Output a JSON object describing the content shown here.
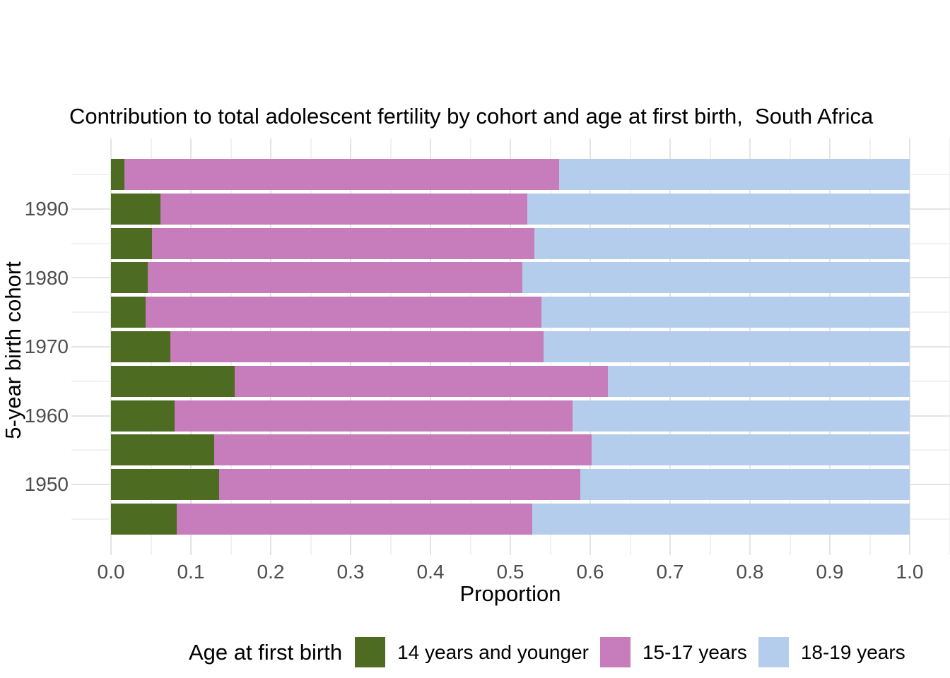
{
  "title": "Contribution to total adolescent fertility by cohort and age at first birth,  South Africa",
  "y_axis": {
    "label": "5-year birth cohort",
    "ticks": [
      "1990",
      "1980",
      "1970",
      "1960",
      "1950"
    ]
  },
  "x_axis": {
    "label": "Proportion",
    "ticks": [
      "0.0",
      "0.1",
      "0.2",
      "0.3",
      "0.4",
      "0.5",
      "0.6",
      "0.7",
      "0.8",
      "0.9",
      "1.0"
    ]
  },
  "legend": {
    "title": "Age at first birth",
    "items": [
      {
        "label": "14 years and younger",
        "color": "#4d6b21"
      },
      {
        "label": "15-17 years",
        "color": "#c77cbb"
      },
      {
        "label": "18-19 years",
        "color": "#b5cdec"
      }
    ]
  },
  "colors": {
    "grid_major": "#e4e4e4",
    "grid_minor": "#f1f1f1",
    "tick_text": "#4d4d4d",
    "title_text": "#000000"
  },
  "chart_data": {
    "type": "bar",
    "orientation": "horizontal",
    "stacked": true,
    "title": "Contribution to total adolescent fertility by cohort and age at first birth,  South Africa",
    "xlabel": "Proportion",
    "ylabel": "5-year birth cohort",
    "xlim": [
      0.0,
      1.0
    ],
    "grid": true,
    "legend_position": "bottom",
    "legend_title": "Age at first birth",
    "categories": [
      "1995",
      "1990",
      "1985",
      "1980",
      "1975",
      "1970",
      "1965",
      "1960",
      "1955",
      "1950",
      "1945"
    ],
    "series": [
      {
        "name": "14 years and younger",
        "color": "#4d6b21",
        "values": [
          0.017,
          0.062,
          0.051,
          0.046,
          0.043,
          0.074,
          0.155,
          0.08,
          0.129,
          0.135,
          0.082
        ]
      },
      {
        "name": "15-17 years",
        "color": "#c77cbb",
        "values": [
          0.544,
          0.459,
          0.479,
          0.469,
          0.496,
          0.468,
          0.467,
          0.498,
          0.473,
          0.453,
          0.445
        ]
      },
      {
        "name": "18-19 years",
        "color": "#b5cdec",
        "values": [
          0.439,
          0.479,
          0.47,
          0.485,
          0.461,
          0.458,
          0.378,
          0.422,
          0.398,
          0.412,
          0.473
        ]
      }
    ]
  }
}
